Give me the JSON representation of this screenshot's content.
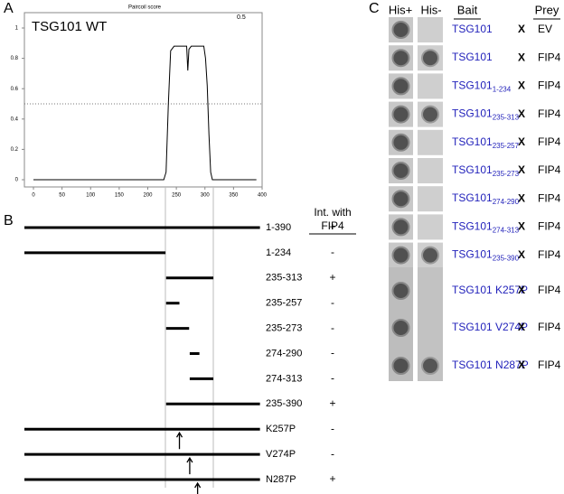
{
  "panel_labels": [
    "A",
    "B",
    "C"
  ],
  "paircoil": {
    "type": "line",
    "title": "Paircoil score",
    "annotation": "0.5",
    "label": "TSG101 WT",
    "x": [
      0,
      228,
      232,
      236,
      240,
      246,
      268,
      270,
      272,
      276,
      298,
      301,
      304,
      307,
      310,
      313,
      390
    ],
    "values": [
      0,
      0,
      0.05,
      0.5,
      0.85,
      0.88,
      0.88,
      0.72,
      0.86,
      0.88,
      0.88,
      0.8,
      0.62,
      0.3,
      0.05,
      0,
      0
    ],
    "threshold": 0.5,
    "xlim": [
      0,
      400
    ],
    "ylim": [
      0,
      1
    ],
    "xticks": [
      0,
      50,
      100,
      150,
      200,
      250,
      300,
      350,
      400
    ],
    "yticks": [
      0,
      0.2,
      0.4,
      0.6,
      0.8,
      1
    ]
  },
  "constructs": {
    "header": [
      "Int. with",
      "FIP4"
    ],
    "items": [
      {
        "label": "1-390",
        "start": 1,
        "end": 390,
        "interaction": "+"
      },
      {
        "label": "1-234",
        "start": 1,
        "end": 234,
        "interaction": "-"
      },
      {
        "label": "235-313",
        "start": 235,
        "end": 313,
        "interaction": "+"
      },
      {
        "label": "235-257",
        "start": 235,
        "end": 257,
        "interaction": "-"
      },
      {
        "label": "235-273",
        "start": 235,
        "end": 273,
        "interaction": "-"
      },
      {
        "label": "274-290",
        "start": 274,
        "end": 290,
        "interaction": "-"
      },
      {
        "label": "274-313",
        "start": 274,
        "end": 313,
        "interaction": "-"
      },
      {
        "label": "235-390",
        "start": 235,
        "end": 390,
        "interaction": "+"
      },
      {
        "label": "K257P",
        "start": 1,
        "end": 390,
        "site": 257,
        "interaction": "-"
      },
      {
        "label": "V274P",
        "start": 1,
        "end": 390,
        "site": 274,
        "interaction": "-"
      },
      {
        "label": "N287P",
        "start": 1,
        "end": 390,
        "site": 287,
        "interaction": "+"
      }
    ]
  },
  "y2h": {
    "columns": [
      "His+",
      "His-",
      "Bait",
      "Prey"
    ],
    "cross": "X",
    "rows": [
      {
        "bait": "TSG101",
        "prey": "EV",
        "his_minus": false
      },
      {
        "bait": "TSG101",
        "prey": "FIP4",
        "his_minus": true
      },
      {
        "bait": "TSG101",
        "sub": "1-234",
        "prey": "FIP4",
        "his_minus": false
      },
      {
        "bait": "TSG101",
        "sub": "235-313",
        "prey": "FIP4",
        "his_minus": true
      },
      {
        "bait": "TSG101",
        "sub": "235-257",
        "prey": "FIP4",
        "his_minus": false
      },
      {
        "bait": "TSG101",
        "sub": "235-273",
        "prey": "FIP4",
        "his_minus": false
      },
      {
        "bait": "TSG101",
        "sub": "274-290",
        "prey": "FIP4",
        "his_minus": false
      },
      {
        "bait": "TSG101",
        "sub": "274-313",
        "prey": "FIP4",
        "his_minus": false
      },
      {
        "bait": "TSG101",
        "sub": "235-390",
        "prey": "FIP4",
        "his_minus": true
      },
      {
        "bait": "TSG101 K257P",
        "prey": "FIP4",
        "his_minus": false
      },
      {
        "bait": "TSG101 V274P",
        "prey": "FIP4",
        "his_minus": false
      },
      {
        "bait": "TSG101 N287P",
        "prey": "FIP4",
        "his_minus": true
      }
    ]
  }
}
